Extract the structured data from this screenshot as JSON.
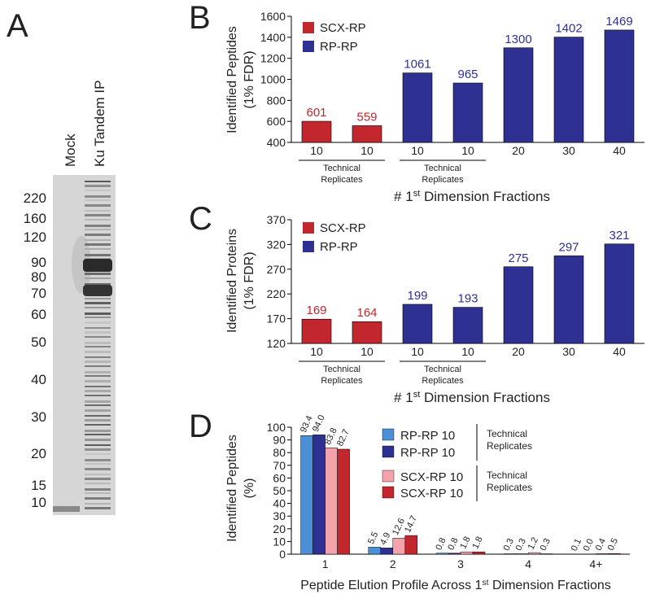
{
  "gel": {
    "panel": "A",
    "lanes": [
      "Mock",
      "Ku Tandem IP"
    ],
    "markers": [
      220,
      160,
      120,
      90,
      80,
      70,
      60,
      50,
      40,
      30,
      20,
      15,
      10
    ]
  },
  "chart_data": [
    {
      "type": "bar",
      "panel": "B",
      "y_label": [
        "Identified Peptides",
        "(1% FDR)"
      ],
      "x_label": "# 1st Dimension Fractions",
      "categories": [
        "10",
        "10",
        "10",
        "10",
        "20",
        "30",
        "40"
      ],
      "series": [
        {
          "name": "SCX-RP",
          "color": "#c1272d",
          "values": [
            601,
            559,
            null,
            null,
            null,
            null,
            null
          ]
        },
        {
          "name": "RP-RP",
          "color": "#2e3192",
          "values": [
            null,
            null,
            1061,
            965,
            1300,
            1402,
            1469
          ]
        }
      ],
      "ylim": [
        400,
        1600
      ],
      "yticks": [
        400,
        600,
        800,
        1000,
        1200,
        1400,
        1600
      ],
      "annotations": [
        "Technical Replicates",
        "Technical Replicates"
      ]
    },
    {
      "type": "bar",
      "panel": "C",
      "y_label": [
        "Identified Proteins",
        "(1% FDR)"
      ],
      "x_label": "# 1st Dimension Fractions",
      "categories": [
        "10",
        "10",
        "10",
        "10",
        "20",
        "30",
        "40"
      ],
      "series": [
        {
          "name": "SCX-RP",
          "color": "#c1272d",
          "values": [
            169,
            164,
            null,
            null,
            null,
            null,
            null
          ]
        },
        {
          "name": "RP-RP",
          "color": "#2e3192",
          "values": [
            null,
            null,
            199,
            193,
            275,
            297,
            321
          ]
        }
      ],
      "ylim": [
        120,
        370
      ],
      "yticks": [
        120,
        170,
        220,
        270,
        320,
        370
      ],
      "annotations": [
        "Technical Replicates",
        "Technical Replicates"
      ]
    },
    {
      "type": "grouped_bar",
      "panel": "D",
      "y_label": [
        "Identified Peptides",
        "(%)"
      ],
      "x_label": "Peptide Elution Profile Across 1st Dimension Fractions",
      "categories": [
        "1",
        "2",
        "3",
        "4",
        "4+"
      ],
      "series": [
        {
          "name": "RP-RP 10",
          "color": "#4b8fd6",
          "values": [
            93.4,
            5.5,
            0.8,
            0.3,
            0.1
          ],
          "value_labels": [
            "93.4",
            "5.5",
            "0.8",
            "0.3",
            "0.1"
          ]
        },
        {
          "name": "RP-RP 10",
          "color": "#2e3192",
          "values": [
            94,
            4.9,
            0.8,
            0.3,
            0
          ],
          "value_labels": [
            "94.0",
            "4.9",
            "0.8",
            "0.3",
            "0.0"
          ]
        },
        {
          "name": "SCX-RP 10",
          "color": "#f4a3aa",
          "values": [
            83.8,
            12.6,
            1.8,
            1.2,
            0.4
          ],
          "value_labels": [
            "83.8",
            "12.6",
            "1.8",
            "1.2",
            "0.4"
          ]
        },
        {
          "name": "SCX-RP 10",
          "color": "#c1272d",
          "values": [
            82.7,
            14.7,
            1.8,
            0.3,
            0.5
          ],
          "value_labels": [
            "82.7",
            "14.7",
            "1.8",
            "0.3",
            "0.5"
          ]
        }
      ],
      "ylim": [
        0,
        100
      ],
      "yticks": [
        0,
        10,
        20,
        30,
        40,
        50,
        60,
        70,
        80,
        90,
        100
      ],
      "annotations": [
        "Technical Replicates",
        "Technical Replicates"
      ]
    }
  ]
}
